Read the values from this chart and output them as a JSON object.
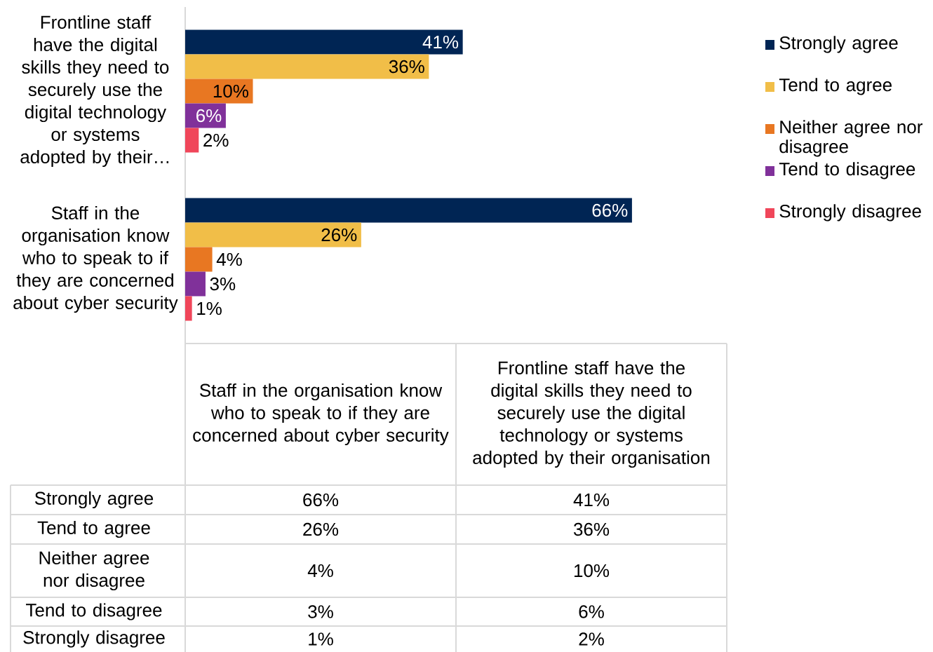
{
  "chart_data": {
    "type": "bar",
    "orientation": "horizontal",
    "categories": [
      "Frontline staff have the digital skills they need to securely use the digital technology or systems adopted by their…",
      "Staff in the organisation know who to speak to if they are concerned about cyber security"
    ],
    "series": [
      {
        "name": "Strongly agree",
        "color": "#002554",
        "values": [
          41,
          66
        ],
        "value_labels": [
          "41%",
          "66%"
        ]
      },
      {
        "name": "Tend to agree",
        "color": "#f1be48",
        "values": [
          36,
          26
        ],
        "value_labels": [
          "36%",
          "26%"
        ]
      },
      {
        "name": "Neither agree nor disagree",
        "color": "#e87722",
        "values": [
          10,
          4
        ],
        "value_labels": [
          "10%",
          "4%"
        ]
      },
      {
        "name": "Tend to disagree",
        "color": "#80319a",
        "values": [
          6,
          3
        ],
        "value_labels": [
          "6%",
          "3%"
        ]
      },
      {
        "name": "Strongly disagree",
        "color": "#f0465a",
        "values": [
          2,
          1
        ],
        "value_labels": [
          "2%",
          "1%"
        ]
      }
    ],
    "annotations": [
      "Staff in the organisation know who to speak to if they are concerned about cyber security",
      "Frontline staff have the digital skills they need to securely use the digital technology or systems adopted by their organisation"
    ],
    "legend": "top right",
    "grid": false,
    "tick_labels": "y"
  }
}
